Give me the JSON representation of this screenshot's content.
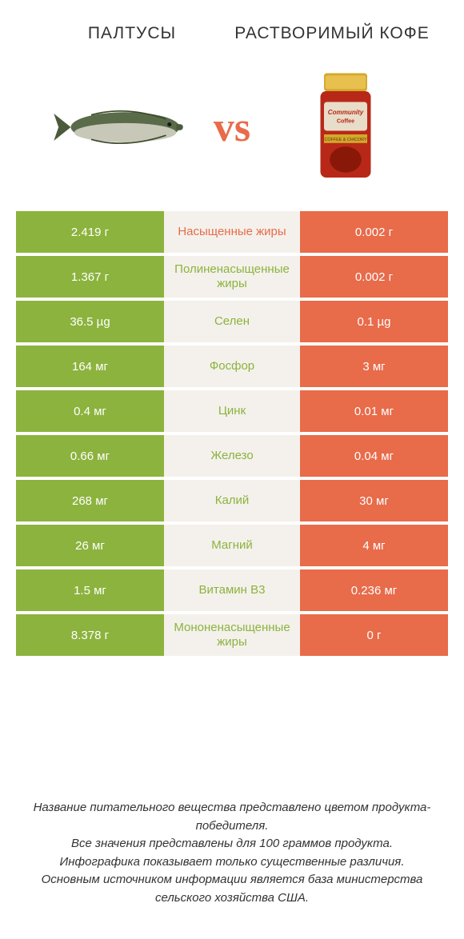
{
  "header": {
    "left_title": "ПАЛТУСЫ",
    "right_title": "РАСТВОРИМЫЙ КОФЕ"
  },
  "vs_label": "vs",
  "colors": {
    "left_bg": "#8cb33e",
    "right_bg": "#e86b4a",
    "mid_bg": "#f4f1ec",
    "text_white": "#ffffff",
    "body_bg": "#ffffff"
  },
  "typography": {
    "header_fontsize": 21,
    "vs_fontsize": 52,
    "cell_fontsize": 15,
    "footer_fontsize": 15
  },
  "rows": [
    {
      "left": "2.419 г",
      "label": "Насыщенные жиры",
      "label_color": "orange",
      "right": "0.002 г"
    },
    {
      "left": "1.367 г",
      "label": "Полиненасыщенные жиры",
      "label_color": "green",
      "right": "0.002 г"
    },
    {
      "left": "36.5 µg",
      "label": "Селен",
      "label_color": "green",
      "right": "0.1 µg"
    },
    {
      "left": "164 мг",
      "label": "Фосфор",
      "label_color": "green",
      "right": "3 мг"
    },
    {
      "left": "0.4 мг",
      "label": "Цинк",
      "label_color": "green",
      "right": "0.01 мг"
    },
    {
      "left": "0.66 мг",
      "label": "Железо",
      "label_color": "green",
      "right": "0.04 мг"
    },
    {
      "left": "268 мг",
      "label": "Калий",
      "label_color": "green",
      "right": "30 мг"
    },
    {
      "left": "26 мг",
      "label": "Магний",
      "label_color": "green",
      "right": "4 мг"
    },
    {
      "left": "1.5 мг",
      "label": "Витамин B3",
      "label_color": "green",
      "right": "0.236 мг"
    },
    {
      "left": "8.378 г",
      "label": "Мононенасыщенные жиры",
      "label_color": "green",
      "right": "0 г"
    }
  ],
  "footer": {
    "line1": "Название питательного вещества представлено цветом продукта-победителя.",
    "line2": "Все значения представлены для 100 граммов продукта.",
    "line3": "Инфографика показывает только существенные различия.",
    "line4": "Основным источником информации является база министерства сельского хозяйства США."
  },
  "image_left": {
    "name": "halibut-fish",
    "colors": {
      "body": "#5a6b4a",
      "belly": "#c8c8b8"
    }
  },
  "image_right": {
    "name": "coffee-jar",
    "colors": {
      "lid": "#d4a82a",
      "body": "#b82818",
      "label": "#e8ddc8"
    }
  }
}
